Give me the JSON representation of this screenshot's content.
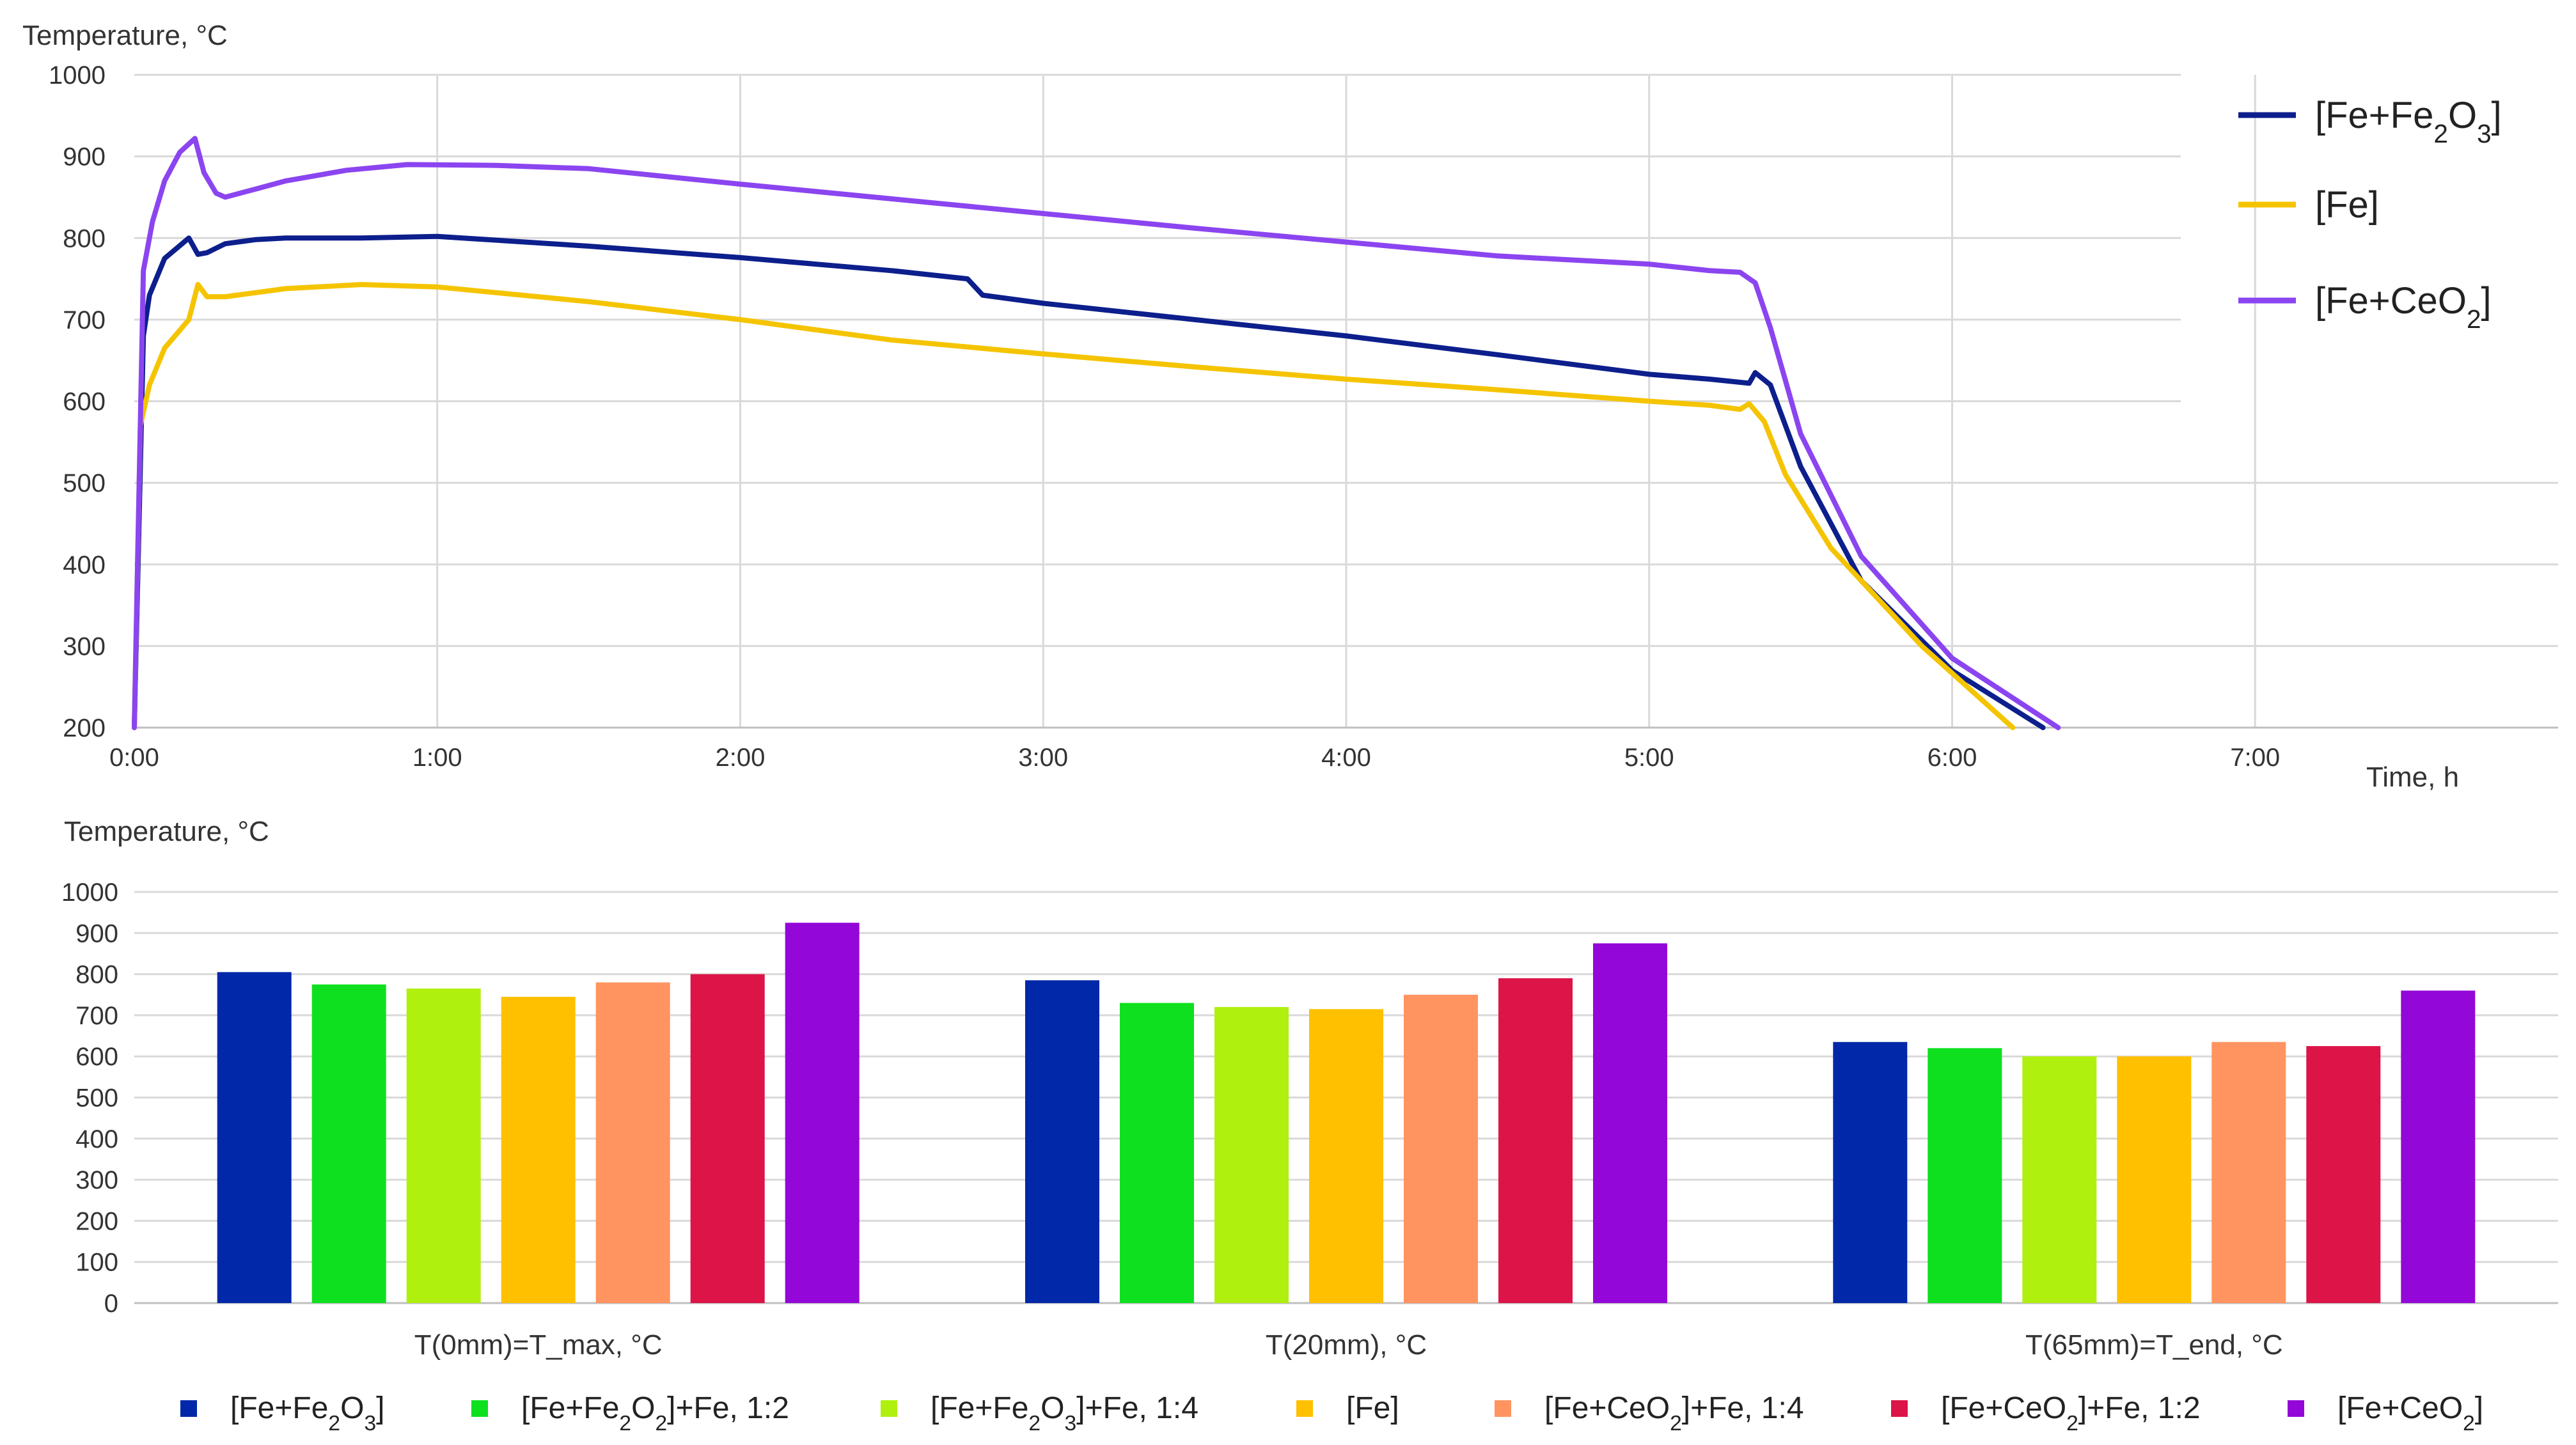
{
  "charts": [
    {
      "type": "line",
      "ylabel": "Temperature, °C",
      "xlabel": "Time, h",
      "yticks": [
        "1000",
        "900",
        "800",
        "700",
        "600",
        "500",
        "400",
        "300",
        "200"
      ],
      "xticks": [
        "0:00",
        "1:00",
        "2:00",
        "3:00",
        "4:00",
        "5:00",
        "6:00",
        "7:00"
      ],
      "legend": [
        {
          "label": "[Fe+Fe",
          "sub": "2",
          "label2": "O",
          "sub2": "3",
          "tail": "]",
          "color": "#0d1f8c"
        },
        {
          "label": "[Fe]",
          "color": "#f5c400"
        },
        {
          "label": "[Fe+CeO",
          "sub": "2",
          "tail": "]",
          "color": "#8b45f0"
        }
      ]
    },
    {
      "type": "bar",
      "ylabel": "Temperature, °C",
      "yticks": [
        "1000",
        "900",
        "800",
        "700",
        "600",
        "500",
        "400",
        "300",
        "200",
        "100",
        "0"
      ],
      "categories": [
        "T(0mm)=T_max, °C",
        "T(20mm), °C",
        "T(65mm)=T_end, °C"
      ],
      "legend": [
        {
          "label": "[Fe+Fe",
          "sub": "2",
          "label2": "O",
          "sub2": "3",
          "tail": "]",
          "color": "#0028a8"
        },
        {
          "label": "[Fe+Fe",
          "sub": "2",
          "label2": "O",
          "sub2": "2",
          "tail": "]+Fe, 1:2",
          "color": "#0ee01f"
        },
        {
          "label": "[Fe+Fe",
          "sub": "2",
          "label2": "O",
          "sub2": "3",
          "tail": "]+Fe, 1:4",
          "color": "#b0f00e"
        },
        {
          "label": "[Fe]",
          "color": "#ffc000"
        },
        {
          "label": "[Fe+CeO",
          "sub": "2",
          "tail": "]+Fe, 1:4",
          "color": "#ff9460"
        },
        {
          "label": "[Fe+CeO",
          "sub": "2",
          "tail": "]+Fe, 1:2",
          "color": "#dc1447"
        },
        {
          "label": "[Fe+CeO",
          "sub": "2",
          "tail": "]",
          "color": "#9308d8"
        }
      ]
    }
  ],
  "chart_data": [
    {
      "type": "line",
      "xlabel": "Time, h",
      "ylabel": "Temperature, °C",
      "xlim": [
        0,
        8
      ],
      "ylim": [
        200,
        1000
      ],
      "series": [
        {
          "name": "[Fe+Fe2O3]",
          "color": "#0d1f8c",
          "x": [
            0,
            0.03,
            0.05,
            0.1,
            0.18,
            0.21,
            0.24,
            0.3,
            0.4,
            0.5,
            0.75,
            1.0,
            1.5,
            2.0,
            2.5,
            2.75,
            2.8,
            3.0,
            3.5,
            4.0,
            4.5,
            5.0,
            5.2,
            5.33,
            5.35,
            5.4,
            5.5,
            5.7,
            6.0,
            6.3
          ],
          "y": [
            200,
            680,
            730,
            775,
            800,
            780,
            782,
            793,
            798,
            800,
            800,
            802,
            790,
            776,
            760,
            750,
            730,
            720,
            700,
            680,
            657,
            633,
            627,
            622,
            635,
            620,
            520,
            380,
            270,
            200
          ]
        },
        {
          "name": "[Fe]",
          "color": "#f5c400",
          "x": [
            0,
            0.02,
            0.05,
            0.1,
            0.18,
            0.21,
            0.24,
            0.3,
            0.5,
            0.75,
            1.0,
            1.5,
            2.0,
            2.5,
            3.0,
            3.5,
            4.0,
            4.5,
            5.0,
            5.2,
            5.3,
            5.33,
            5.38,
            5.45,
            5.6,
            5.9,
            6.2
          ],
          "y": [
            200,
            570,
            620,
            665,
            700,
            743,
            728,
            728,
            738,
            743,
            740,
            722,
            700,
            675,
            658,
            642,
            627,
            614,
            600,
            595,
            590,
            597,
            575,
            510,
            420,
            300,
            200
          ]
        },
        {
          "name": "[Fe+CeO2]",
          "color": "#8b45f0",
          "x": [
            0,
            0.03,
            0.06,
            0.1,
            0.15,
            0.2,
            0.23,
            0.27,
            0.3,
            0.4,
            0.5,
            0.7,
            0.9,
            1.2,
            1.5,
            2.0,
            2.5,
            3.0,
            3.5,
            4.0,
            4.5,
            5.0,
            5.2,
            5.3,
            5.35,
            5.4,
            5.5,
            5.7,
            6.0,
            6.35
          ],
          "y": [
            200,
            760,
            820,
            870,
            905,
            922,
            880,
            855,
            850,
            860,
            870,
            883,
            890,
            889,
            885,
            866,
            848,
            830,
            812,
            795,
            778,
            768,
            760,
            758,
            745,
            690,
            560,
            410,
            285,
            200
          ]
        }
      ]
    },
    {
      "type": "bar",
      "ylabel": "Temperature, °C",
      "ylim": [
        0,
        1000
      ],
      "categories": [
        "T(0mm)=T_max, °C",
        "T(20mm), °C",
        "T(65mm)=T_end, °C"
      ],
      "series": [
        {
          "name": "[Fe+Fe2O3]",
          "color": "#0028a8",
          "values": [
            805,
            785,
            635
          ]
        },
        {
          "name": "[Fe+Fe2O2]+Fe, 1:2",
          "color": "#0ee01f",
          "values": [
            775,
            730,
            620
          ]
        },
        {
          "name": "[Fe+Fe2O3]+Fe, 1:4",
          "color": "#b0f00e",
          "values": [
            765,
            720,
            600
          ]
        },
        {
          "name": "[Fe]",
          "color": "#ffc000",
          "values": [
            745,
            715,
            600
          ]
        },
        {
          "name": "[Fe+CeO2]+Fe, 1:4",
          "color": "#ff9460",
          "values": [
            780,
            750,
            635
          ]
        },
        {
          "name": "[Fe+CeO2]+Fe, 1:2",
          "color": "#dc1447",
          "values": [
            800,
            790,
            625
          ]
        },
        {
          "name": "[Fe+CeO2]",
          "color": "#9308d8",
          "values": [
            925,
            875,
            760
          ]
        }
      ]
    }
  ]
}
